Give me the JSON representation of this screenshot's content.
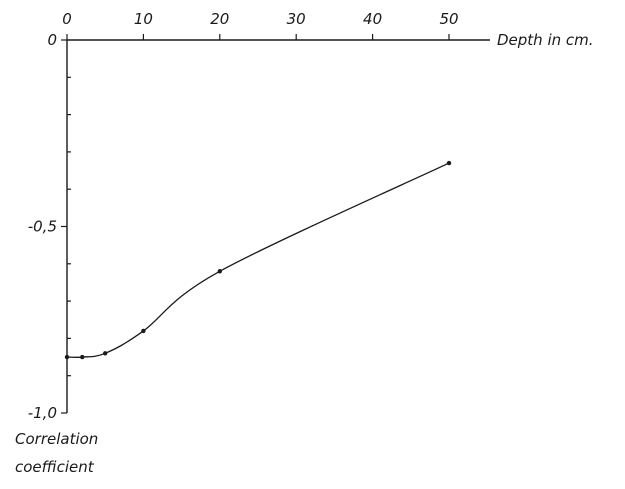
{
  "chart_data": {
    "type": "line",
    "xlabel": "Depth in cm.",
    "ylabel_lines": [
      "Correlation",
      "coefficient"
    ],
    "x_axis_position": "top",
    "xlim": [
      0,
      50
    ],
    "ylim": [
      -1.0,
      0
    ],
    "x_ticks": [
      {
        "value": 0,
        "label": "0"
      },
      {
        "value": 10,
        "label": "10"
      },
      {
        "value": 20,
        "label": "20"
      },
      {
        "value": 30,
        "label": "30"
      },
      {
        "value": 40,
        "label": "40"
      },
      {
        "value": 50,
        "label": "50"
      }
    ],
    "y_ticks": [
      {
        "value": 0,
        "label": "0"
      },
      {
        "value": -0.5,
        "label": "-0,5"
      },
      {
        "value": -1.0,
        "label": "-1,0"
      }
    ],
    "y_minor_ticks": [
      -0.1,
      -0.2,
      -0.3,
      -0.4,
      -0.6,
      -0.7,
      -0.8,
      -0.9
    ],
    "grid": false,
    "series": [
      {
        "x": [
          0,
          2,
          5,
          10,
          20,
          50
        ],
        "y": [
          -0.85,
          -0.85,
          -0.84,
          -0.78,
          -0.62,
          -0.33
        ]
      }
    ]
  }
}
